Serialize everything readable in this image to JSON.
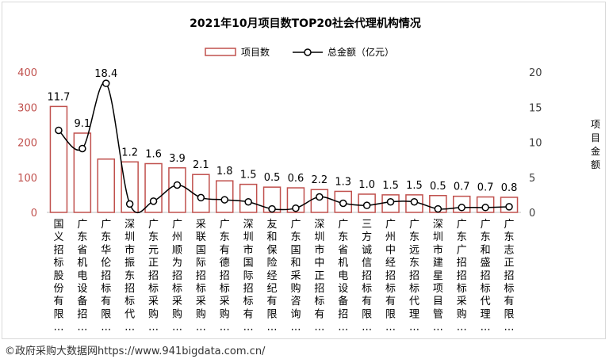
{
  "chart_data": {
    "type": "bar",
    "title": "2021年10月项目数TOP20社会代理机构情况",
    "categories": [
      "国义招标股份有限…",
      "广东省机电设备招…",
      "广东华伦招标有限…",
      "深圳市振东招标代…",
      "广东元正招标采购…",
      "广州顺为招标采购…",
      "采联国际招标采购…",
      "广东有德招标采购…",
      "深圳市国际招标有…",
      "友和保险经纪有限…",
      "广东国和采购咨询…",
      "深圳市中正招标有…",
      "广东省机电设备招…",
      "三方诚信招标有限…",
      "广州中经招标有限…",
      "广东远东招标代理…",
      "深圳市建星项目管…",
      "广东广招招标采购…",
      "广东和盛招标代理…",
      "广东志正招标有限…"
    ],
    "series": [
      {
        "name": "项目数",
        "axis": "left",
        "color": "#c0504d",
        "values": [
          302,
          226,
          152,
          144,
          139,
          127,
          108,
          90,
          80,
          72,
          70,
          65,
          60,
          52,
          50,
          50,
          48,
          46,
          44,
          43
        ]
      },
      {
        "name": "总金额（亿元）",
        "axis": "right",
        "color": "#000000",
        "values": [
          11.7,
          9.1,
          18.4,
          1.2,
          1.6,
          3.9,
          2.1,
          1.8,
          1.5,
          0.5,
          0.6,
          2.2,
          1.3,
          1.0,
          1.5,
          1.5,
          0.5,
          0.7,
          0.7,
          0.8
        ],
        "labels": [
          "11.7",
          "9.1",
          "18.4",
          "1.2",
          "1.6",
          "3.9",
          "2.1",
          "1.8",
          "1.5",
          "0.5",
          "0.6",
          "2.2",
          "1.3",
          "1.0",
          "1.5",
          "1.5",
          "0.5",
          "0.7",
          "0.7",
          "0.8"
        ]
      }
    ],
    "y_left": {
      "min": 0,
      "max": 400,
      "ticks": [
        "0",
        "100",
        "200",
        "300",
        "400"
      ],
      "tick_color": "#c0504d"
    },
    "y_right": {
      "min": 0,
      "max": 20,
      "ticks": [
        "0",
        "5",
        "10",
        "15",
        "20"
      ],
      "label": "项目金额"
    },
    "legend_position": "top-center",
    "grid": false
  },
  "footer": {
    "source": "©政府采购大数据网https://www.941bigdata.com.cn/"
  }
}
